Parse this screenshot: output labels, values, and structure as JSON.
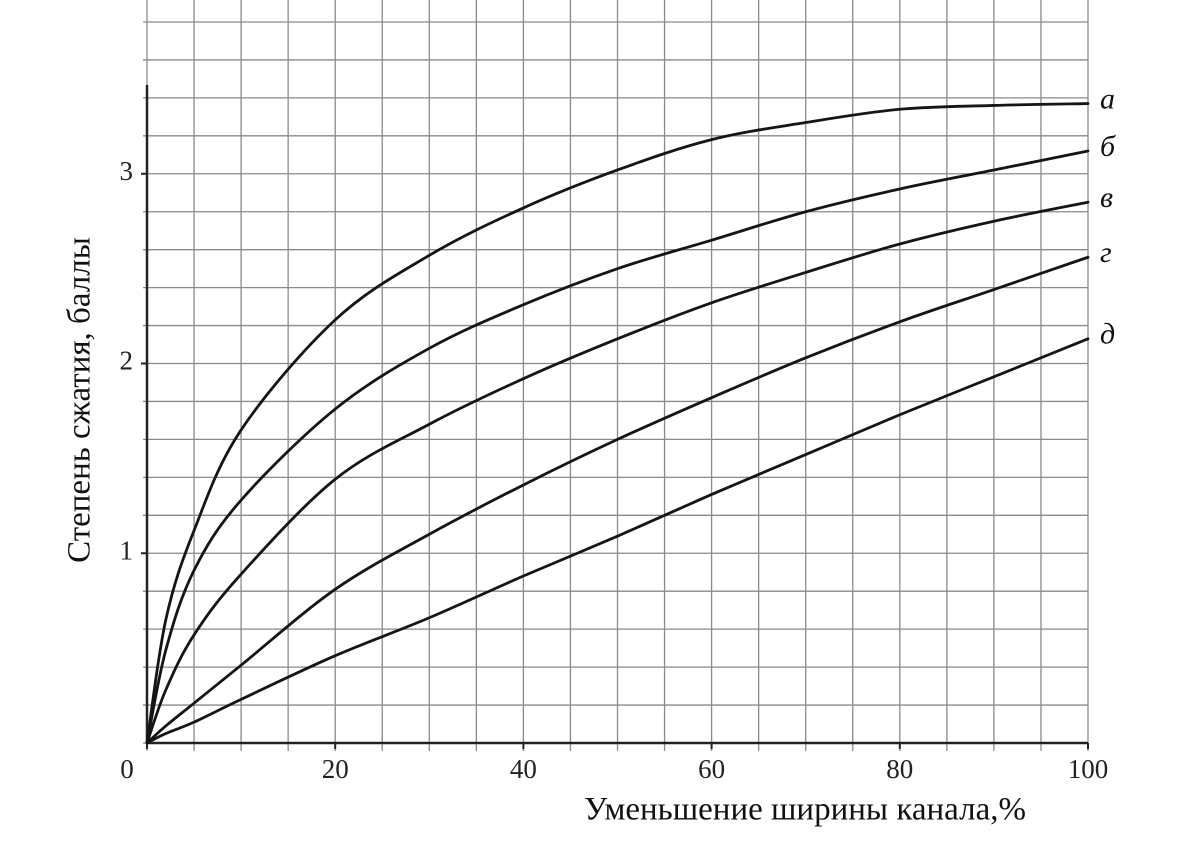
{
  "chart_data": {
    "type": "line",
    "xlabel": "Уменьшение ширины канала,%",
    "ylabel": "Степень сжатия, баллы",
    "x": [
      0,
      2,
      5,
      10,
      20,
      30,
      40,
      50,
      60,
      70,
      80,
      90,
      100
    ],
    "series": [
      {
        "name": "а",
        "color": "#151515",
        "values": [
          0,
          0.65,
          1.12,
          1.65,
          2.23,
          2.57,
          2.82,
          3.02,
          3.18,
          3.27,
          3.34,
          3.36,
          3.37
        ]
      },
      {
        "name": "б",
        "color": "#151515",
        "values": [
          0,
          0.49,
          0.91,
          1.28,
          1.76,
          2.08,
          2.31,
          2.5,
          2.65,
          2.8,
          2.92,
          3.02,
          3.12
        ]
      },
      {
        "name": "в",
        "color": "#151515",
        "values": [
          0,
          0.28,
          0.57,
          0.89,
          1.39,
          1.68,
          1.92,
          2.13,
          2.32,
          2.48,
          2.63,
          2.75,
          2.85
        ]
      },
      {
        "name": "г",
        "color": "#151515",
        "values": [
          0,
          0.09,
          0.21,
          0.41,
          0.81,
          1.1,
          1.36,
          1.6,
          1.82,
          2.03,
          2.22,
          2.39,
          2.56
        ]
      },
      {
        "name": "д",
        "color": "#151515",
        "values": [
          0,
          0.05,
          0.11,
          0.23,
          0.46,
          0.66,
          0.88,
          1.09,
          1.31,
          1.52,
          1.73,
          1.93,
          2.13
        ]
      }
    ],
    "xlim": [
      0,
      100
    ],
    "ylim": [
      0,
      3.9
    ],
    "xticks": [
      0,
      20,
      40,
      60,
      80,
      100
    ],
    "yticks": [
      1,
      2,
      3
    ],
    "grid": true,
    "xgrid": [
      0,
      5,
      10,
      15,
      20,
      25,
      30,
      35,
      40,
      45,
      50,
      55,
      60,
      65,
      70,
      75,
      80,
      85,
      90,
      95,
      100
    ],
    "ygrid": [
      0,
      0.2,
      0.4,
      0.6,
      0.8,
      1,
      1.2,
      1.4,
      1.6,
      1.8,
      2,
      2.2,
      2.4,
      2.6,
      2.8,
      3,
      3.2,
      3.4,
      3.6,
      3.8
    ]
  }
}
